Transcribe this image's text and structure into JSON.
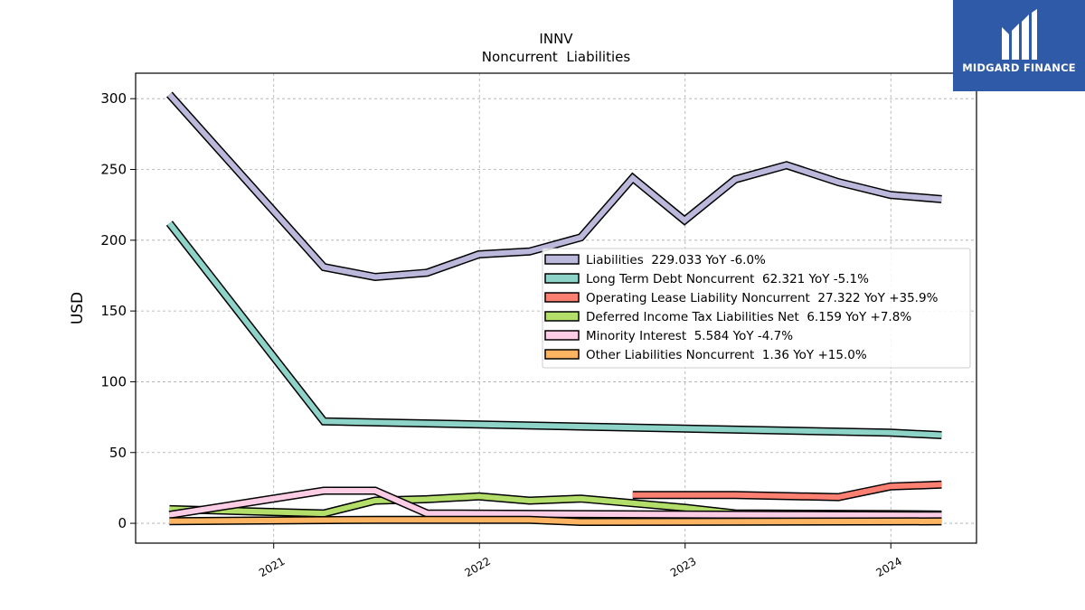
{
  "brand": {
    "name": "MIDGARD FINANCE",
    "bg_color": "#2f5aa8"
  },
  "chart_data": {
    "type": "line",
    "title": "INNV",
    "subtitle": "Noncurrent  Liabilities",
    "ylabel": "USD",
    "xlabel": "",
    "xlim": [
      "2020-05-01",
      "2024-06-01"
    ],
    "ylim": [
      -14,
      318
    ],
    "yticks": [
      0,
      50,
      100,
      150,
      200,
      250,
      300
    ],
    "xticks": [
      {
        "date": "2021-01-01",
        "label": "2021"
      },
      {
        "date": "2022-01-01",
        "label": "2022"
      },
      {
        "date": "2023-01-01",
        "label": "2023"
      },
      {
        "date": "2024-01-01",
        "label": "2024"
      }
    ],
    "grid": true,
    "legend_position": "center-right",
    "series": [
      {
        "name": "Liabilities",
        "legend": "Liabilities  229.033 YoY -6.0%",
        "color": "#bcb8db",
        "points": [
          [
            "2020-06-30",
            303
          ],
          [
            "2021-03-31",
            181
          ],
          [
            "2021-06-30",
            174
          ],
          [
            "2021-09-30",
            177
          ],
          [
            "2021-12-31",
            190
          ],
          [
            "2022-03-31",
            192
          ],
          [
            "2022-06-30",
            202
          ],
          [
            "2022-09-30",
            244
          ],
          [
            "2022-12-31",
            214
          ],
          [
            "2023-03-31",
            243
          ],
          [
            "2023-06-30",
            253
          ],
          [
            "2023-09-30",
            241
          ],
          [
            "2023-12-31",
            232
          ],
          [
            "2024-03-31",
            229
          ]
        ]
      },
      {
        "name": "Long Term Debt Noncurrent",
        "legend": "Long Term Debt Noncurrent  62.321 YoY -5.1%",
        "color": "#8dd3c7",
        "points": [
          [
            "2020-06-30",
            212
          ],
          [
            "2021-03-31",
            72
          ],
          [
            "2023-12-31",
            64
          ],
          [
            "2024-03-31",
            62.3
          ]
        ]
      },
      {
        "name": "Operating Lease Liability Noncurrent",
        "legend": "Operating Lease Liability Noncurrent  27.322 YoY +35.9%",
        "color": "#fb8072",
        "points": [
          [
            "2022-09-30",
            20
          ],
          [
            "2023-03-31",
            20
          ],
          [
            "2023-09-30",
            18.5
          ],
          [
            "2023-12-31",
            26
          ],
          [
            "2024-03-31",
            27.3
          ]
        ]
      },
      {
        "name": "Deferred Income Tax Liabilities Net",
        "legend": "Deferred Income Tax Liabilities Net  6.159 YoY +7.8%",
        "color": "#b3de69",
        "points": [
          [
            "2020-06-30",
            10
          ],
          [
            "2021-03-31",
            7
          ],
          [
            "2021-06-30",
            16
          ],
          [
            "2021-09-30",
            17
          ],
          [
            "2021-12-31",
            19
          ],
          [
            "2022-03-31",
            16
          ],
          [
            "2022-06-30",
            17.5
          ],
          [
            "2022-12-31",
            11
          ],
          [
            "2023-03-31",
            7
          ],
          [
            "2023-12-31",
            6.5
          ],
          [
            "2024-03-31",
            6.2
          ]
        ]
      },
      {
        "name": "Minority Interest",
        "legend": "Minority Interest  5.584 YoY -4.7%",
        "color": "#fccde5",
        "points": [
          [
            "2020-06-30",
            6
          ],
          [
            "2021-03-31",
            23
          ],
          [
            "2021-06-30",
            23
          ],
          [
            "2021-09-30",
            7
          ],
          [
            "2022-06-30",
            6.5
          ],
          [
            "2023-06-30",
            6
          ],
          [
            "2024-03-31",
            5.6
          ]
        ]
      },
      {
        "name": "Other Liabilities Noncurrent",
        "legend": "Other Liabilities Noncurrent  1.36 YoY +15.0%",
        "color": "#fdb462",
        "points": [
          [
            "2020-06-30",
            1.5
          ],
          [
            "2021-06-30",
            2.5
          ],
          [
            "2022-03-31",
            2.5
          ],
          [
            "2022-06-30",
            1
          ],
          [
            "2024-03-31",
            1.4
          ]
        ]
      }
    ]
  }
}
